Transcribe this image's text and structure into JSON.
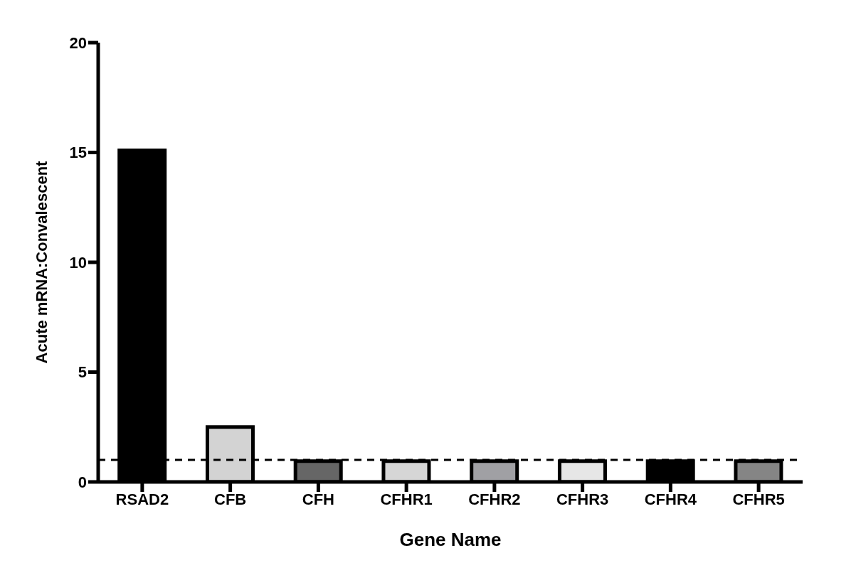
{
  "chart_data": {
    "type": "bar",
    "xlabel": "Gene Name",
    "ylabel": "Acute mRNA:Convalescent",
    "categories": [
      "RSAD2",
      "CFB",
      "CFH",
      "CFHR1",
      "CFHR2",
      "CFHR3",
      "CFHR4",
      "CFHR5"
    ],
    "values": [
      15.1,
      2.5,
      0.95,
      0.95,
      0.95,
      0.95,
      0.95,
      0.95
    ],
    "colors": [
      "#000000",
      "#d3d3d3",
      "#666666",
      "#d6d6d6",
      "#a0a0a4",
      "#e6e6e6",
      "#000000",
      "#858585"
    ],
    "ylim": [
      0,
      20
    ],
    "yticks": [
      0,
      5,
      10,
      15,
      20
    ],
    "grid": false,
    "legend": false,
    "ref_lines": [
      {
        "axis": "y",
        "value": 1,
        "label": null,
        "line_style": "dashed",
        "color": "#000000"
      }
    ]
  }
}
